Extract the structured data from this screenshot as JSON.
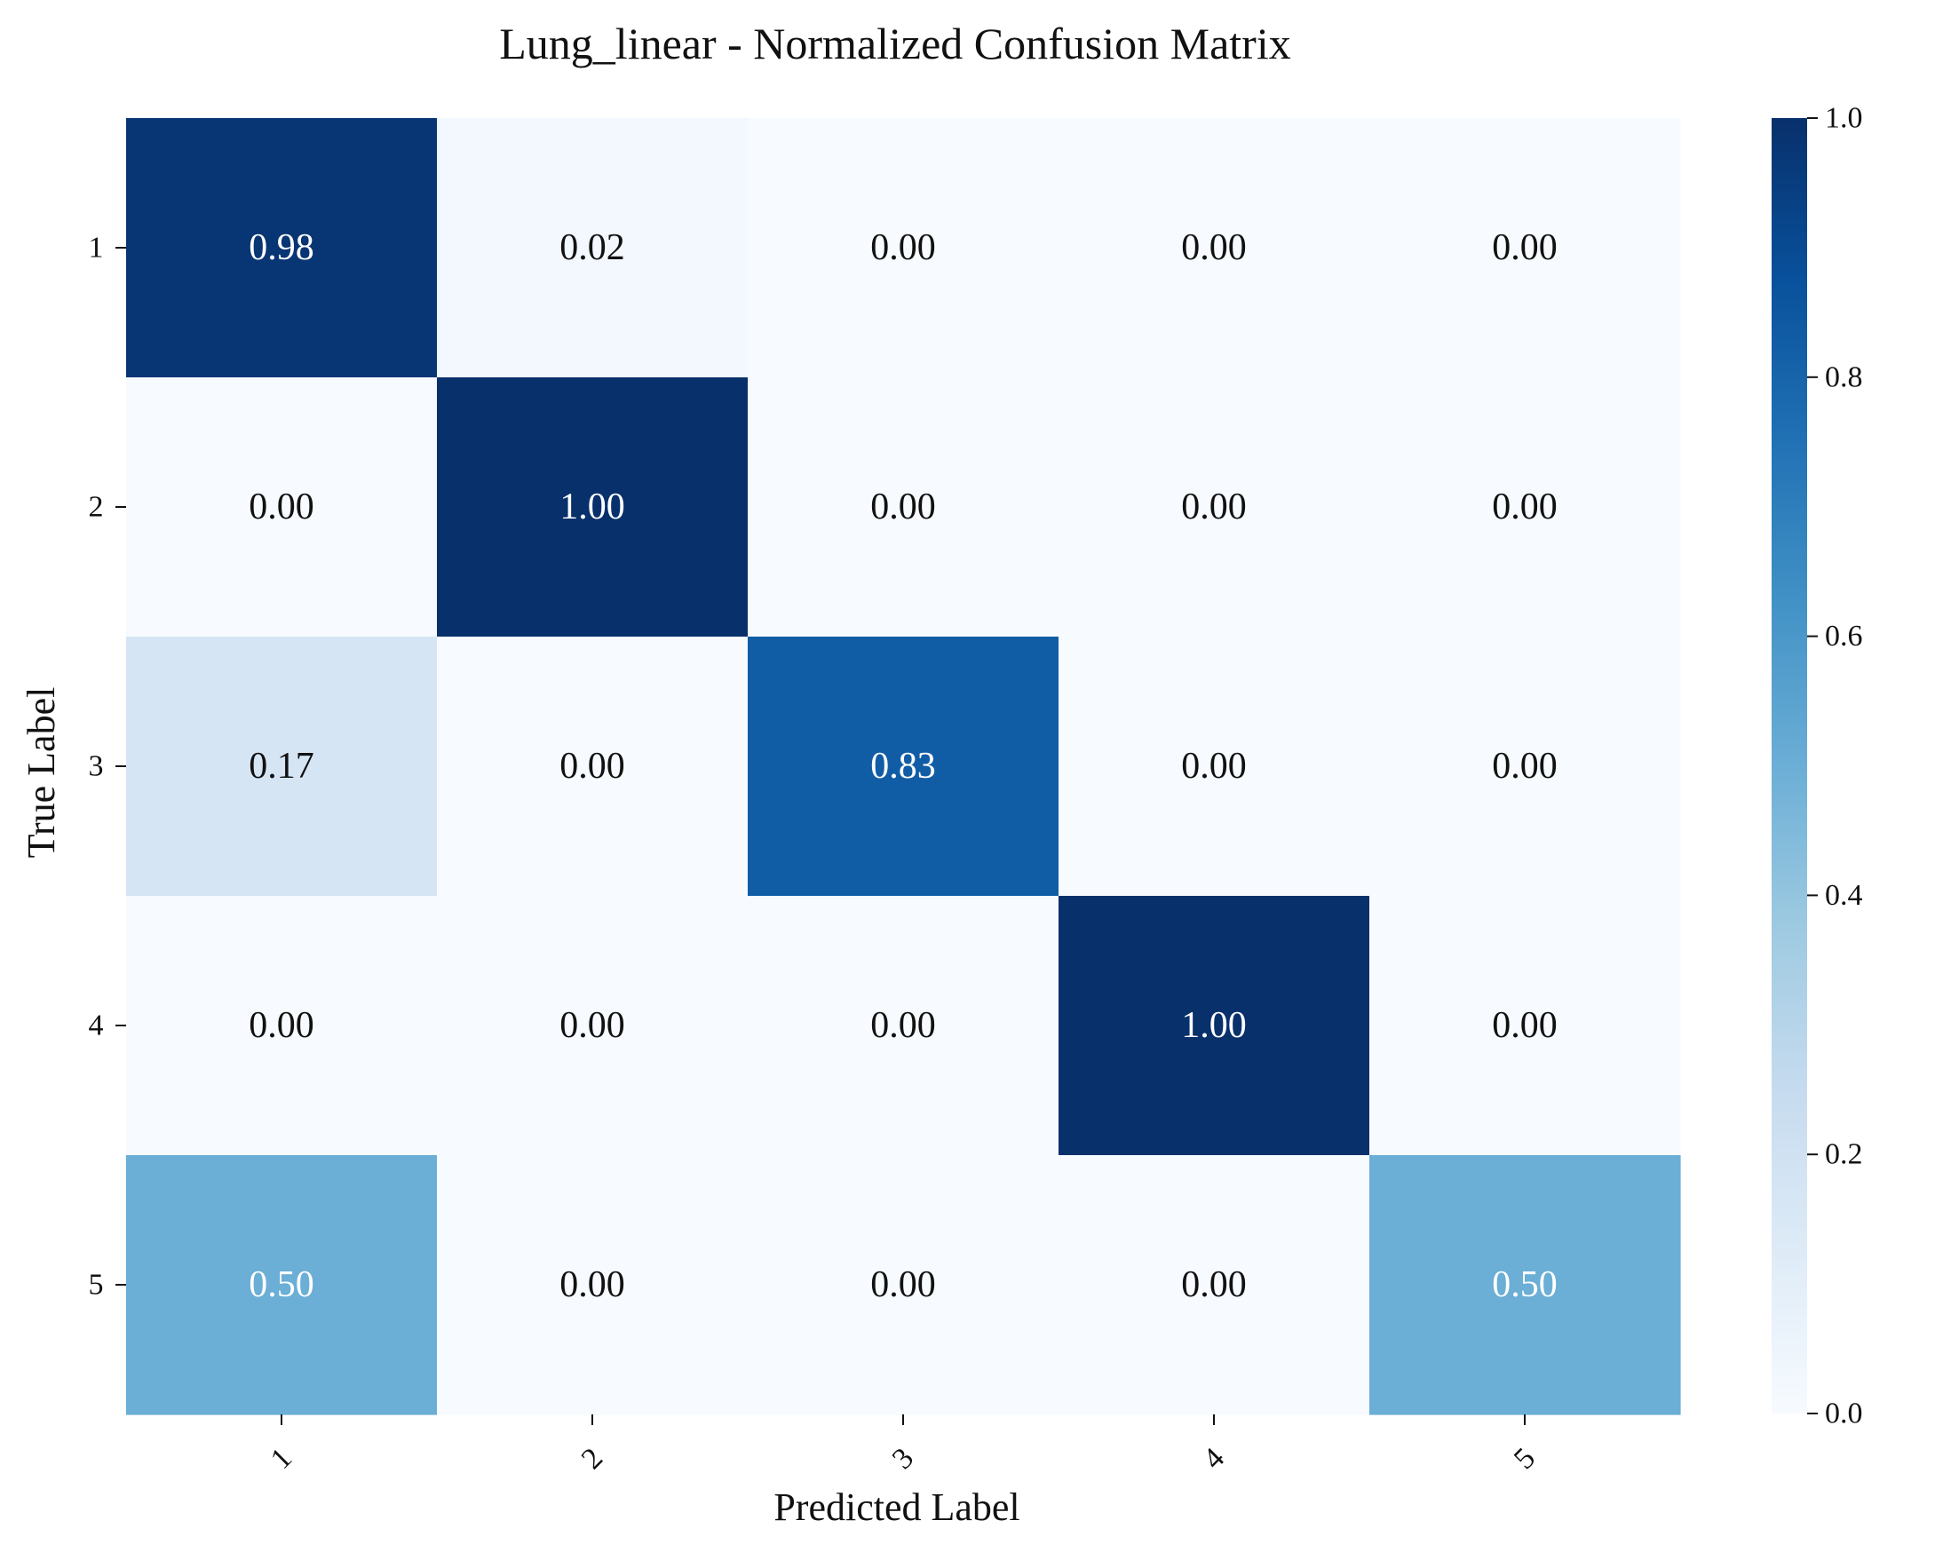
{
  "chart_data": {
    "type": "heatmap",
    "title": "Lung_linear - Normalized Confusion Matrix",
    "xlabel": "Predicted Label",
    "ylabel": "True Label",
    "x_categories": [
      "1",
      "2",
      "3",
      "4",
      "5"
    ],
    "y_categories": [
      "1",
      "2",
      "3",
      "4",
      "5"
    ],
    "values": [
      [
        0.98,
        0.02,
        0.0,
        0.0,
        0.0
      ],
      [
        0.0,
        1.0,
        0.0,
        0.0,
        0.0
      ],
      [
        0.17,
        0.0,
        0.83,
        0.0,
        0.0
      ],
      [
        0.0,
        0.0,
        0.0,
        1.0,
        0.0
      ],
      [
        0.5,
        0.0,
        0.0,
        0.0,
        0.5
      ]
    ],
    "value_format": "0.00",
    "colormap": "Blues",
    "colorbar": {
      "range": [
        0.0,
        1.0
      ],
      "ticks": [
        "0.0",
        "0.2",
        "0.4",
        "0.6",
        "0.8",
        "1.0"
      ]
    },
    "x_tick_rotation_deg": 45,
    "grid": false
  }
}
